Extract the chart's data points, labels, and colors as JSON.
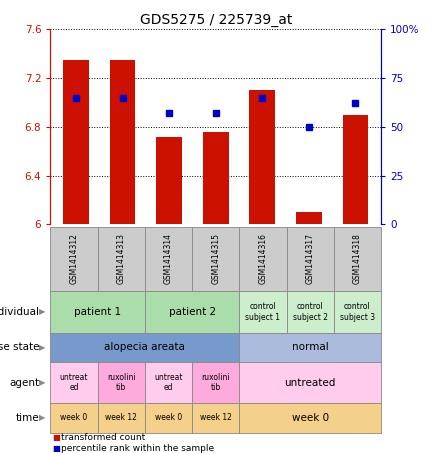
{
  "title": "GDS5275 / 225739_at",
  "samples": [
    "GSM1414312",
    "GSM1414313",
    "GSM1414314",
    "GSM1414315",
    "GSM1414316",
    "GSM1414317",
    "GSM1414318"
  ],
  "red_values": [
    7.35,
    7.35,
    6.72,
    6.76,
    7.1,
    6.1,
    6.9
  ],
  "blue_values": [
    65,
    65,
    57,
    57,
    65,
    50,
    62
  ],
  "ylim_left": [
    6.0,
    7.6
  ],
  "ylim_right": [
    0,
    100
  ],
  "yticks_left": [
    6.0,
    6.4,
    6.8,
    7.2,
    7.6
  ],
  "yticks_right": [
    0,
    25,
    50,
    75,
    100
  ],
  "ytick_labels_left": [
    "6",
    "6.4",
    "6.8",
    "7.2",
    "7.6"
  ],
  "ytick_labels_right": [
    "0",
    "25",
    "50",
    "75",
    "100%"
  ],
  "legend_red": "transformed count",
  "legend_blue": "percentile rank within the sample",
  "bar_color": "#cc1100",
  "dot_color": "#0000cc",
  "bg_color": "#ffffff",
  "left_axis_color": "#cc1100",
  "right_axis_color": "#0000cc",
  "sample_label_bg": "#cccccc",
  "individual_patient_color": "#aaddaa",
  "individual_control_color": "#cceecc",
  "disease_alopecia_color": "#7799cc",
  "disease_normal_color": "#aabbdd",
  "agent_untreated_color": "#ffccee",
  "agent_ruxolini_color": "#ffaadd",
  "time_color": "#f5d08a",
  "cell_edge_color": "#888888"
}
